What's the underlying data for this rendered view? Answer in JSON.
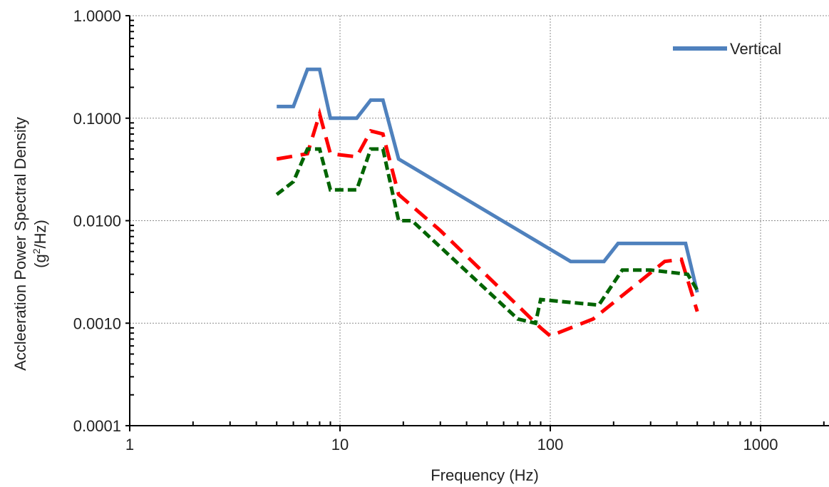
{
  "chart_data": {
    "type": "line",
    "xlabel": "Frequency (Hz)",
    "ylabel_line1": "Accleeration Power Spectral Density",
    "ylabel_line2_base": "(g",
    "ylabel_line2_sup": "2",
    "ylabel_line2_rest": "/Hz)",
    "x_scale": "log",
    "y_scale": "log",
    "xlim": [
      1,
      2000
    ],
    "ylim": [
      0.0001,
      1
    ],
    "x_ticks": [
      1,
      10,
      100,
      1000
    ],
    "x_tick_labels": [
      "1",
      "10",
      "100",
      "1000"
    ],
    "y_ticks": [
      0.0001,
      0.001,
      0.01,
      0.1,
      1
    ],
    "y_tick_labels": [
      "0.0001",
      "0.0010",
      "0.0100",
      "0.1000",
      "1.0000"
    ],
    "grid": true,
    "legend_position": "top-right",
    "series": [
      {
        "name": "Vertical",
        "color": "#4f81bd",
        "style": "solid",
        "x": [
          5,
          6,
          7,
          8,
          9,
          12,
          14,
          16,
          19,
          125,
          180,
          210,
          440,
          500
        ],
        "y": [
          0.13,
          0.13,
          0.3,
          0.3,
          0.1,
          0.1,
          0.15,
          0.15,
          0.04,
          0.004,
          0.004,
          0.006,
          0.006,
          0.002
        ]
      },
      {
        "color": "#ff0000",
        "style": "dashed",
        "x": [
          5,
          7,
          8,
          9,
          12,
          14,
          16,
          19,
          30,
          90,
          100,
          160,
          350,
          420,
          500
        ],
        "y": [
          0.04,
          0.045,
          0.11,
          0.045,
          0.042,
          0.075,
          0.07,
          0.018,
          0.008,
          0.0009,
          0.00075,
          0.0011,
          0.004,
          0.0042,
          0.0013
        ]
      },
      {
        "color": "#006400",
        "style": "dashed",
        "x": [
          5,
          6,
          7,
          8,
          9,
          12,
          14,
          16,
          19,
          22,
          70,
          85,
          90,
          170,
          220,
          300,
          450,
          500
        ],
        "y": [
          0.018,
          0.024,
          0.05,
          0.05,
          0.02,
          0.02,
          0.05,
          0.05,
          0.01,
          0.01,
          0.0011,
          0.001,
          0.0017,
          0.0015,
          0.0033,
          0.0033,
          0.003,
          0.0021
        ]
      }
    ]
  }
}
